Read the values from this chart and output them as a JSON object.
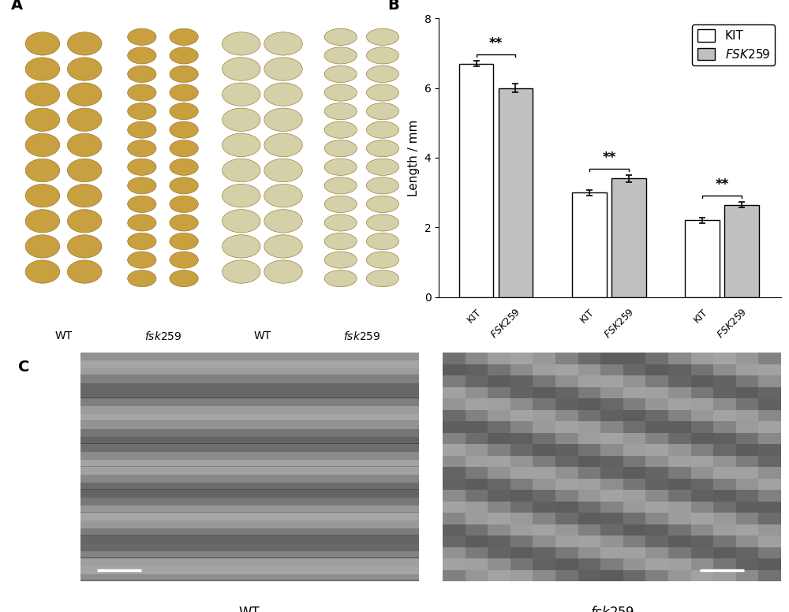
{
  "panel_A_label": "A",
  "panel_B_label": "B",
  "panel_C_label": "C",
  "bar_groups": [
    {
      "kit_val": 6.7,
      "kit_err": 0.08,
      "fsk_val": 6.0,
      "fsk_err": 0.12,
      "sig": "**"
    },
    {
      "kit_val": 3.0,
      "kit_err": 0.08,
      "fsk_val": 3.4,
      "fsk_err": 0.1,
      "sig": "**"
    },
    {
      "kit_val": 2.2,
      "kit_err": 0.08,
      "fsk_val": 2.65,
      "fsk_err": 0.08,
      "sig": "**"
    }
  ],
  "ylabel": "Length / mm",
  "ylim": [
    0,
    8
  ],
  "yticks": [
    0,
    2,
    4,
    6,
    8
  ],
  "kit_color": "#ffffff",
  "fsk_color": "#c0c0c0",
  "bar_edgecolor": "#000000",
  "bar_width": 0.35,
  "legend_kit_label": "KIT",
  "legend_fsk_label": "FSK259",
  "fig_width": 10.0,
  "fig_height": 7.76,
  "dpi": 100,
  "seed_color_warm": "#c8a040",
  "seed_color_cool": "#d4d0a8",
  "tick_fontsize": 9,
  "axis_label_fontsize": 11,
  "star_fontsize": 12,
  "legend_fontsize": 11,
  "panel_label_fontsize": 14,
  "sublabel_fontsize": 10
}
